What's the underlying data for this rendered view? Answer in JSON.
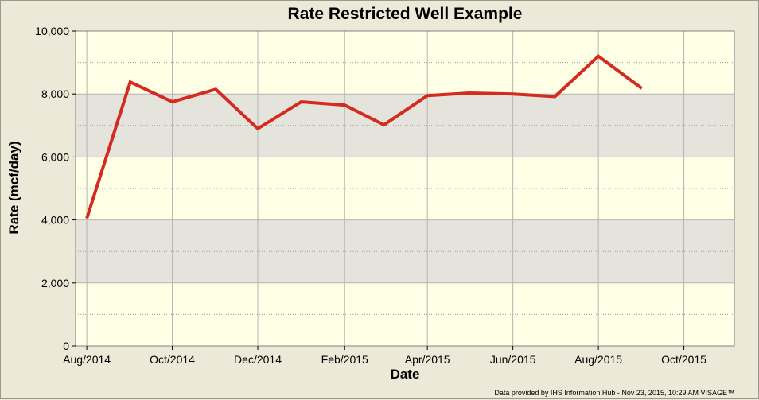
{
  "chart_data": {
    "type": "line",
    "title": "Rate Restricted Well Example",
    "xlabel": "Date",
    "ylabel": "Rate (mcf/day)",
    "ylim": [
      0,
      10000
    ],
    "yticks": [
      0,
      2000,
      4000,
      6000,
      8000,
      10000
    ],
    "ytick_labels": [
      "0",
      "2,000",
      "4,000",
      "6,000",
      "8,000",
      "10,000"
    ],
    "xlim": [
      "2014-07-24",
      "2015-11-06"
    ],
    "xticks": [
      "2014-08-01",
      "2014-10-01",
      "2014-12-01",
      "2015-02-01",
      "2015-04-01",
      "2015-06-01",
      "2015-08-01",
      "2015-10-01"
    ],
    "xtick_labels": [
      "Aug/2014",
      "Oct/2014",
      "Dec/2014",
      "Feb/2015",
      "Apr/2015",
      "Jun/2015",
      "Aug/2015",
      "Oct/2015"
    ],
    "grid": true,
    "band_color": "#e4e4dc",
    "plot_bg": "#ffffe6",
    "series": [
      {
        "color": "#d42a20",
        "x": [
          "2014-08-01",
          "2014-09-01",
          "2014-10-01",
          "2014-11-01",
          "2014-12-01",
          "2015-01-01",
          "2015-02-01",
          "2015-03-01",
          "2015-04-01",
          "2015-05-01",
          "2015-06-01",
          "2015-07-01",
          "2015-08-01",
          "2015-09-01"
        ],
        "values": [
          4050,
          8380,
          7750,
          8150,
          6900,
          7750,
          7650,
          7020,
          7950,
          8030,
          8000,
          7920,
          9200,
          8180
        ]
      }
    ]
  },
  "footer": {
    "credit": "Data provided by IHS Information Hub - Nov 23, 2015, 10:29 AM  VISAGE™"
  }
}
